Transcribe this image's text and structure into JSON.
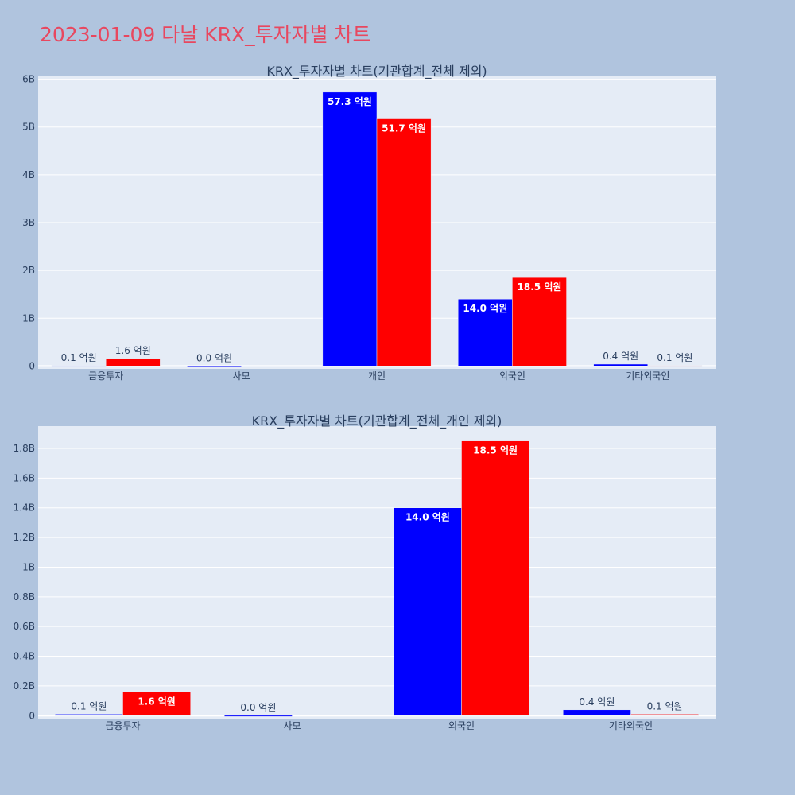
{
  "page": {
    "title": "2023-01-09 다날 KRX_투자자별 차트"
  },
  "colors": {
    "series_a": "#0000ff",
    "series_b": "#ff0000",
    "plot_bg": "#e5ecf6",
    "page_bg": "#b0c4de",
    "title": "#e8475f"
  },
  "chart_data": [
    {
      "type": "bar",
      "title": "KRX_투자자별 차트(기관합계_전체 제외)",
      "categories": [
        "금융투자",
        "사모",
        "개인",
        "외국인",
        "기타외국인"
      ],
      "series": [
        {
          "values": [
            10000000,
            2000000,
            5730000000,
            1400000000,
            40000000
          ],
          "labels": [
            "0.1 억원",
            "0.0 억원",
            "57.3 억원",
            "14.0 억원",
            "0.4 억원"
          ]
        },
        {
          "values": [
            160000000,
            0,
            5170000000,
            1850000000,
            10000000
          ],
          "labels": [
            "1.6 억원",
            "",
            "51.7 억원",
            "18.5 억원",
            "0.1 억원"
          ]
        }
      ],
      "yticks": [
        0,
        1000000000,
        2000000000,
        3000000000,
        4000000000,
        5000000000,
        6000000000
      ],
      "yticklabels": [
        "0",
        "1B",
        "2B",
        "3B",
        "4B",
        "5B",
        "6B"
      ],
      "ylim": [
        -60000000,
        6060000000
      ],
      "grid": true
    },
    {
      "type": "bar",
      "title": "KRX_투자자별 차트(기관합계_전체_개인 제외)",
      "categories": [
        "금융투자",
        "사모",
        "외국인",
        "기타외국인"
      ],
      "series": [
        {
          "values": [
            10000000,
            2000000,
            1400000000,
            40000000
          ],
          "labels": [
            "0.1 억원",
            "0.0 억원",
            "14.0 억원",
            "0.4 억원"
          ]
        },
        {
          "values": [
            160000000,
            0,
            1850000000,
            10000000
          ],
          "labels": [
            "1.6 억원",
            "",
            "18.5 억원",
            "0.1 억원"
          ]
        }
      ],
      "yticks": [
        0,
        200000000,
        400000000,
        600000000,
        800000000,
        1000000000,
        1200000000,
        1400000000,
        1600000000,
        1800000000
      ],
      "yticklabels": [
        "0",
        "0.2B",
        "0.4B",
        "0.6B",
        "0.8B",
        "1B",
        "1.2B",
        "1.4B",
        "1.6B",
        "1.8B"
      ],
      "ylim": [
        -20000000,
        1950000000
      ],
      "grid": true
    }
  ]
}
